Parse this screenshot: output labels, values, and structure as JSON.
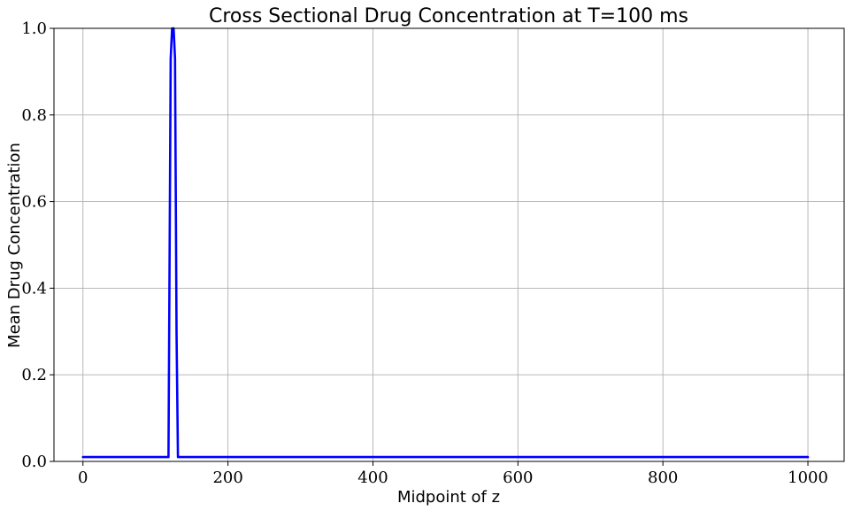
{
  "chart_data": {
    "type": "line",
    "title": "Cross Sectional Drug Concentration at T=100 ms",
    "xlabel": "Midpoint of z",
    "ylabel": "Mean Drug Concentration",
    "xlim": [
      -40,
      1050
    ],
    "ylim": [
      0.0,
      1.0
    ],
    "xticks": [
      0,
      200,
      400,
      600,
      800,
      1000
    ],
    "xtick_labels": [
      "0",
      "200",
      "400",
      "600",
      "800",
      "1000"
    ],
    "yticks": [
      0.0,
      0.2,
      0.4,
      0.6,
      0.8,
      1.0
    ],
    "ytick_labels": [
      "0.0",
      "0.2",
      "0.4",
      "0.6",
      "0.8",
      "1.0"
    ],
    "grid": true,
    "series": [
      {
        "color": "#0000ff",
        "x": [
          0,
          118,
          121,
          123,
          125,
          127,
          129,
          131,
          1000
        ],
        "y": [
          0.01,
          0.01,
          0.93,
          1.0,
          1.0,
          0.93,
          0.3,
          0.01,
          0.01
        ]
      }
    ]
  }
}
